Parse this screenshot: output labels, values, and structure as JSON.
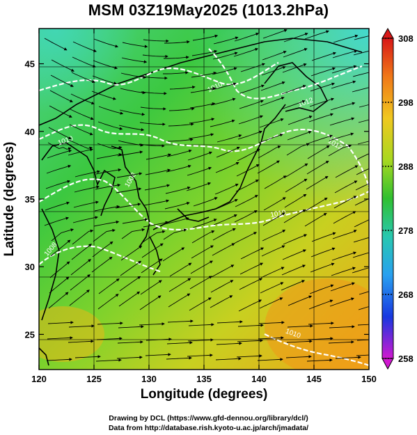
{
  "title": "MSM 03Z19May2025 (1013.2hPa)",
  "map": {
    "xlabel": "Longitude (degrees)",
    "ylabel": "Latitude  (degrees)",
    "lon_range": [
      120,
      150
    ],
    "lat_range": [
      22.4,
      47.6
    ],
    "lon_ticks": [
      "120",
      "125",
      "130",
      "135",
      "140",
      "145",
      "150"
    ],
    "lat_ticks": [
      "25",
      "30",
      "35",
      "40",
      "45"
    ],
    "isobar_labels": [
      "1010",
      "1008",
      "1010",
      "1012",
      "1012",
      "1010",
      "1008",
      "1010"
    ]
  },
  "colorbar": {
    "ticks": [
      "308",
      "298",
      "288",
      "278",
      "268",
      "258"
    ],
    "min": 258,
    "max": 308
  },
  "credits": {
    "line1": "Drawing by DCL (https://www.gfd-dennou.org/library/dcl/)",
    "line2": "Data from http://database.rish.kyoto-u.ac.jp/arch/jmadata/"
  },
  "colors": {
    "sea_cool": "#3fd8b0",
    "land": "#2db83a",
    "mid": "#8ad42a",
    "warm": "#e0c020",
    "hot": "#f0a020"
  }
}
